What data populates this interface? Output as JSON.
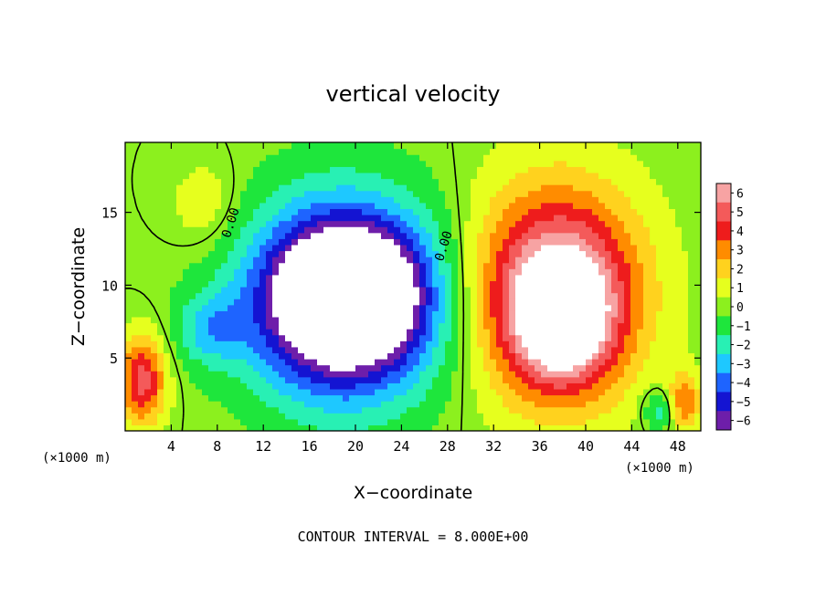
{
  "chart_data": {
    "type": "heatmap",
    "title": "vertical velocity",
    "xlabel": "X−coordinate",
    "ylabel": "Z−coordinate",
    "x_unit_left": "(×1000 m)",
    "x_unit_right": "(×1000 m)",
    "footer": "CONTOUR INTERVAL = 8.000E+00",
    "xlim": [
      0,
      50
    ],
    "ylim": [
      0,
      19.8
    ],
    "x_ticks": [
      4,
      8,
      12,
      16,
      20,
      24,
      28,
      32,
      36,
      40,
      44,
      48
    ],
    "x_tick_labels": [
      "4",
      "8",
      "12",
      "16",
      "20",
      "24",
      "28",
      "32",
      "36",
      "40",
      "44",
      "48"
    ],
    "y_ticks": [
      5,
      10,
      15
    ],
    "y_tick_labels": [
      "5",
      "10",
      "15"
    ],
    "contour_labels": [
      {
        "text": "0.00",
        "x": 9.5,
        "z": 14.2
      },
      {
        "text": "0.00",
        "x": 28.0,
        "z": 12.6
      }
    ],
    "colorbar": {
      "levels": [
        6,
        5,
        4,
        3,
        2,
        1,
        0,
        -1,
        -2,
        -3,
        -4,
        -5,
        -6
      ],
      "labels": [
        "6",
        "5",
        "4",
        "3",
        "2",
        "1",
        "0",
        "−1",
        "−2",
        "−3",
        "−4",
        "−5",
        "−6"
      ],
      "colors": [
        "#f7a3a3",
        "#f45a5a",
        "#ee1c1c",
        "#ff8c00",
        "#ffd21e",
        "#e6ff1e",
        "#8cf01e",
        "#1ee63c",
        "#28f0b4",
        "#1ec8ff",
        "#1e64ff",
        "#1414d2",
        "#6e1eaa"
      ]
    },
    "features": [
      {
        "name": "updraft",
        "x": 37.5,
        "z": 9.5,
        "rx": 7.0,
        "rz": 7.0,
        "amp": 7.5
      },
      {
        "name": "updraft-core",
        "x": 38.0,
        "z": 7.5,
        "rx": 4.0,
        "rz": 4.0,
        "amp": 4.5
      },
      {
        "name": "downdraft",
        "x": 19.0,
        "z": 9.0,
        "rx": 8.0,
        "rz": 6.5,
        "amp": -10.0
      },
      {
        "name": "downdraft-core",
        "x": 19.5,
        "z": 9.5,
        "rx": 5.0,
        "rz": 3.5,
        "amp": -6.0
      },
      {
        "name": "weak-downdraft",
        "x": 7.5,
        "z": 7.0,
        "rx": 3.0,
        "rz": 2.5,
        "amp": -2.5
      },
      {
        "name": "weak-updraft",
        "x": 7.0,
        "z": 15.5,
        "rx": 3.0,
        "rz": 3.0,
        "amp": 1.3
      },
      {
        "name": "boundary-updraft",
        "x": 1.5,
        "z": 3.5,
        "rx": 2.0,
        "rz": 3.0,
        "amp": 5.0
      },
      {
        "name": "boundary-updraft-right",
        "x": 48.5,
        "z": 2.0,
        "rx": 1.5,
        "rz": 2.0,
        "amp": 3.5
      },
      {
        "name": "low-downdraft",
        "x": 46.5,
        "z": 1.5,
        "rx": 1.5,
        "rz": 1.5,
        "amp": -2.5
      }
    ]
  }
}
